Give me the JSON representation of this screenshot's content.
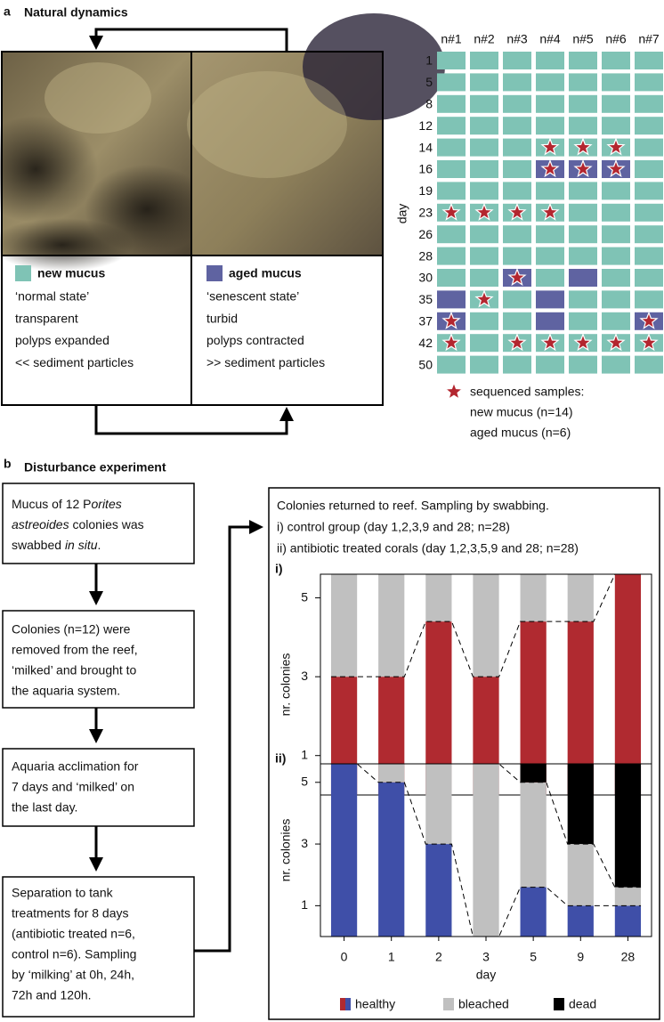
{
  "panel_a": {
    "label": "a",
    "title": "Natural dynamics",
    "new_box": {
      "heading": "new mucus",
      "lines": [
        "‘normal state’",
        "transparent",
        "polyps expanded",
        "<< sediment particles"
      ]
    },
    "aged_box": {
      "heading": "aged mucus",
      "lines": [
        "‘senescent state’",
        "turbid",
        "polyps contracted",
        ">> sediment particles"
      ]
    },
    "grid": {
      "columns": [
        "n#1",
        "n#2",
        "n#3",
        "n#4",
        "n#5",
        "n#6",
        "n#7"
      ],
      "ylabel": "day",
      "rows": [
        1,
        5,
        8,
        12,
        14,
        16,
        19,
        23,
        26,
        28,
        30,
        35,
        37,
        42,
        50
      ],
      "cells": [
        [
          "n",
          "n",
          "n",
          "n",
          "n",
          "n",
          "n"
        ],
        [
          "n",
          "n",
          "n",
          "n",
          "n",
          "n",
          "n"
        ],
        [
          "n",
          "n",
          "n",
          "n",
          "n",
          "n",
          "n"
        ],
        [
          "n",
          "n",
          "n",
          "n",
          "n",
          "n",
          "n"
        ],
        [
          "n",
          "n",
          "n",
          "n*",
          "n*",
          "n*",
          "n"
        ],
        [
          "n",
          "n",
          "n",
          "a*",
          "a*",
          "a*",
          "n"
        ],
        [
          "n",
          "n",
          "n",
          "n",
          "n",
          "n",
          "n"
        ],
        [
          "n*",
          "n*",
          "n*",
          "n*",
          "n",
          "n",
          "n"
        ],
        [
          "n",
          "n",
          "n",
          "n",
          "n",
          "n",
          "n"
        ],
        [
          "n",
          "n",
          "n",
          "n",
          "n",
          "n",
          "n"
        ],
        [
          "n",
          "n",
          "a*",
          "n",
          "a",
          "n",
          "n"
        ],
        [
          "a",
          "n*",
          "n",
          "a",
          "n",
          "n",
          "n"
        ],
        [
          "a*",
          "n",
          "n",
          "a",
          "n",
          "n",
          "a*"
        ],
        [
          "n*",
          "n",
          "n*",
          "n*",
          "n*",
          "n*",
          "n*"
        ],
        [
          "n",
          "n",
          "n",
          "n",
          "n",
          "n",
          "n"
        ]
      ],
      "new_color": "#7fc3b5",
      "aged_color": "#5f63a1",
      "star_color": "#b3262f",
      "legend": [
        "sequenced samples:",
        "new mucus (n=14)",
        "aged mucus (n=6)"
      ]
    }
  },
  "panel_b": {
    "label": "b",
    "title": "Disturbance experiment",
    "steps": [
      {
        "lines": [
          [
            {
              "text": "Mucus of 12 P"
            },
            {
              "text": "orites",
              "italic": true
            }
          ],
          [
            {
              "text": "astreoides",
              "italic": true
            },
            {
              "text": " colonies was"
            }
          ],
          [
            {
              "text": "swabbed "
            },
            {
              "text": "in situ",
              "italic": true
            },
            {
              "text": "."
            }
          ]
        ]
      },
      {
        "lines": [
          "Colonies (n=12) were",
          "removed from the reef,",
          "‘milked’ and brought to",
          "the aquaria system."
        ]
      },
      {
        "lines": [
          "Aquaria acclimation for",
          "7 days and ‘milked’ on",
          "the last day."
        ]
      },
      {
        "lines": [
          "Separation to tank",
          "treatments for 8 days",
          "(antibiotic treated n=6,",
          "control n=6). Sampling",
          "by ‘milking’ at 0h, 24h,",
          "72h and 120h."
        ]
      }
    ],
    "result_lines": [
      "Colonies returned to reef. Sampling by swabbing.",
      "i)  control group (day 1,2,3,9 and 28; n=28)",
      "ii) antibiotic treated corals (day 1,2,3,5,9 and 28; n=28)"
    ]
  },
  "chart_data": [
    {
      "type": "bar",
      "stacked": true,
      "label": "i)",
      "ylabel": "nr. colonies",
      "ylim": [
        0,
        5.6
      ],
      "yticks": [
        1,
        3,
        5
      ],
      "series": [
        {
          "color": "#b02a30",
          "values": [
            3,
            3,
            4.4,
            3,
            4.4,
            4.4,
            5.6
          ]
        },
        {
          "color": "#c0c0c0",
          "values": [
            2.6,
            2.6,
            1.2,
            2.6,
            1.2,
            1.2,
            0
          ]
        }
      ]
    },
    {
      "type": "bar",
      "stacked": true,
      "label": "ii)",
      "ylabel": "nr. colonies",
      "xlabel": "day",
      "categories": [
        "0",
        "1",
        "2",
        "3",
        "5",
        "9",
        "28"
      ],
      "ylim": [
        0,
        5.6
      ],
      "yticks": [
        1,
        3,
        5
      ],
      "series": [
        {
          "name": "healthy",
          "color": "#3f4fa8",
          "values": [
            5.6,
            5,
            3,
            0,
            1.6,
            1,
            1
          ]
        },
        {
          "name": "bleached",
          "color": "#c0c0c0",
          "values": [
            0,
            0.6,
            2.6,
            5.6,
            3.4,
            2,
            0.6
          ]
        },
        {
          "name": "dead",
          "color": "#000000",
          "values": [
            0,
            0,
            0,
            0,
            0.6,
            2.6,
            4
          ]
        }
      ]
    }
  ]
}
